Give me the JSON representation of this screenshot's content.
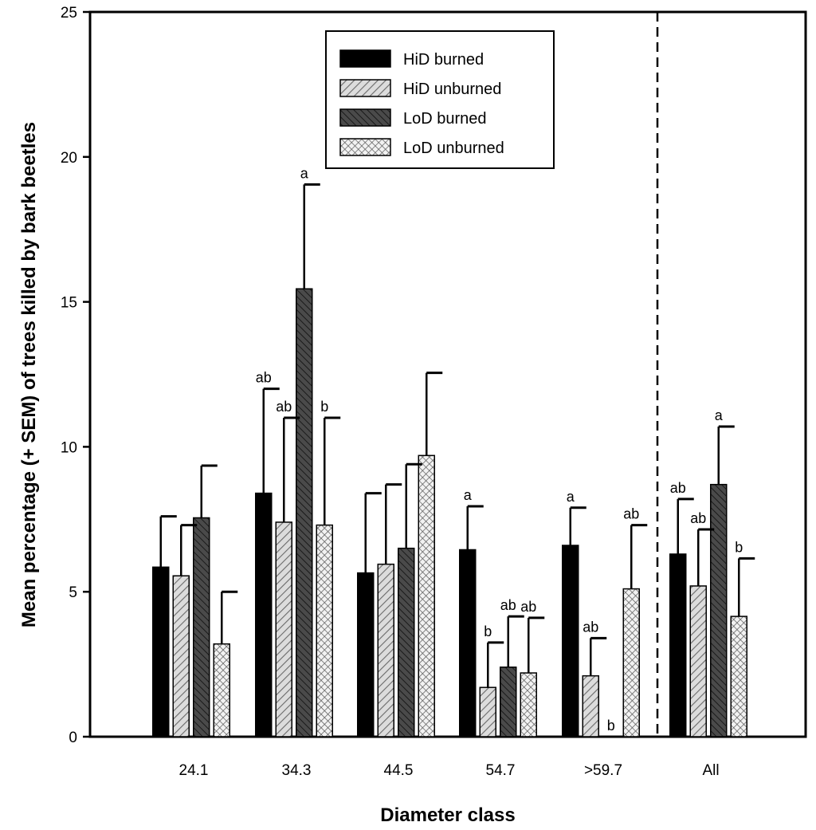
{
  "chart_data": {
    "type": "bar",
    "title": "",
    "xlabel": "Diameter class",
    "ylabel": "Mean percentage (+ SEM) of trees killed by bark beetles",
    "ylim": [
      0,
      25
    ],
    "yticks": [
      0,
      5,
      10,
      15,
      20,
      25
    ],
    "categories": [
      "24.1",
      "34.3",
      "44.5",
      "54.7",
      ">59.7",
      "All"
    ],
    "legend_position": "top-center",
    "divider_before_category": "All",
    "series": [
      {
        "name": "HiD burned",
        "pattern": "solid-black",
        "values": [
          5.85,
          8.4,
          5.65,
          6.45,
          6.6,
          6.3
        ],
        "errors": [
          1.75,
          3.6,
          2.75,
          1.5,
          1.3,
          1.9
        ],
        "labels": [
          "",
          "ab",
          "",
          "a",
          "a",
          "ab"
        ]
      },
      {
        "name": "HiD unburned",
        "pattern": "light-gray-hatch",
        "values": [
          5.55,
          7.4,
          5.95,
          1.7,
          2.1,
          5.2
        ],
        "errors": [
          1.75,
          3.6,
          2.75,
          1.55,
          1.3,
          1.95
        ],
        "labels": [
          "",
          "ab",
          "",
          "b",
          "ab",
          "ab"
        ]
      },
      {
        "name": "LoD burned",
        "pattern": "dark-gray-hatch",
        "values": [
          7.55,
          15.45,
          6.5,
          2.4,
          0,
          8.7
        ],
        "errors": [
          1.8,
          3.6,
          2.9,
          1.75,
          0,
          2.0
        ],
        "labels": [
          "",
          "a",
          "",
          "ab",
          "b",
          "a"
        ]
      },
      {
        "name": "LoD unburned",
        "pattern": "crosshatch",
        "values": [
          3.2,
          7.3,
          9.7,
          2.2,
          5.1,
          4.15
        ],
        "errors": [
          1.8,
          3.7,
          2.85,
          1.9,
          2.2,
          2.0
        ],
        "labels": [
          "",
          "b",
          "",
          "ab",
          "ab",
          "b"
        ]
      }
    ]
  }
}
